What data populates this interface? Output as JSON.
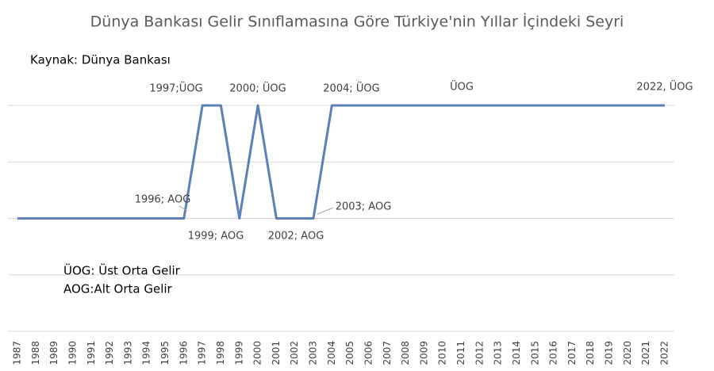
{
  "chart_data": {
    "type": "line",
    "title": "Dünya Bankası Gelir Sınıflamasına Göre Türkiye'nin Yıllar İçindeki Seyri",
    "source": "Kaynak: Dünya Bankası",
    "notes": [
      "ÜOG: Üst Orta Gelir",
      "AOG:Alt Orta Gelir"
    ],
    "categories": [
      "1987",
      "1988",
      "1989",
      "1990",
      "1991",
      "1992",
      "1993",
      "1994",
      "1995",
      "1996",
      "1997",
      "1998",
      "1999",
      "2000",
      "2001",
      "2002",
      "2003",
      "2004",
      "2005",
      "2006",
      "2007",
      "2008",
      "2009",
      "2010",
      "2011",
      "2012",
      "2013",
      "2014",
      "2015",
      "2016",
      "2017",
      "2018",
      "2019",
      "2020",
      "2021",
      "2022"
    ],
    "series": [
      {
        "color": "#5b7fb6",
        "values": [
          2,
          2,
          2,
          2,
          2,
          2,
          2,
          2,
          2,
          2,
          4,
          4,
          2,
          4,
          2,
          2,
          2,
          4,
          4,
          4,
          4,
          4,
          4,
          4,
          4,
          4,
          4,
          4,
          4,
          4,
          4,
          4,
          4,
          4,
          4,
          4
        ]
      }
    ],
    "annotations": [
      "1997;ÜOG",
      "2000; ÜOG",
      "2004; ÜOG",
      "ÜOG",
      "2022, ÜOG",
      "1996; AOG",
      "1999; AOG",
      "2002; AOG",
      "2003; AOG"
    ],
    "ylim": [
      0,
      4
    ],
    "yticks": [
      0,
      1,
      2,
      3,
      4
    ],
    "ytick_labels": false,
    "grid": true
  }
}
